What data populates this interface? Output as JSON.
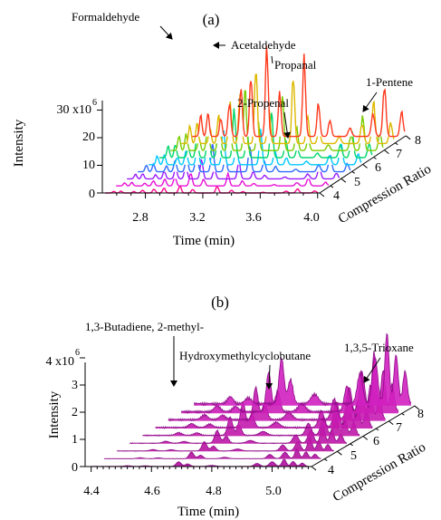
{
  "chart_data": [
    {
      "panel_label": "(a)",
      "type": "line",
      "style": "waterfall-3d",
      "color_scheme": "rainbow",
      "xlabel": "Time (min)",
      "ylabel": "Intensity",
      "zlabel": "Compression Ratio",
      "xlim": [
        2.5,
        4.0
      ],
      "ylim": [
        0,
        35000000
      ],
      "x_ticks": [
        "2.8",
        "3.2",
        "3.6",
        "4.0"
      ],
      "y_ticks": [
        "0",
        "10",
        "20",
        "30 x10"
      ],
      "y_exponent": "6",
      "z_ticks": [
        "4",
        "5",
        "6",
        "7",
        "8"
      ],
      "annotations": [
        "Formaldehyde",
        "Acetaldehyde",
        "Propanal",
        "1-Pentene",
        "2-Propenal"
      ],
      "peaks": [
        {
          "name": "Formaldehyde",
          "time": 3.04,
          "max_intensity": 31500000
        },
        {
          "name": "Acetaldehyde",
          "time": 3.3,
          "max_intensity": 29000000
        },
        {
          "name": "2-Propenal",
          "time": 3.78,
          "max_intensity": 8000000
        },
        {
          "name": "Propanal",
          "time": 3.86,
          "max_intensity": 18000000
        },
        {
          "name": "1-Pentene",
          "time": 3.98,
          "max_intensity": 9000000
        }
      ],
      "series": [
        {
          "name": "4",
          "scale": 0.08
        },
        {
          "name": "4.5",
          "scale": 0.15
        },
        {
          "name": "5",
          "scale": 0.22
        },
        {
          "name": "5.5",
          "scale": 0.32
        },
        {
          "name": "6",
          "scale": 0.42
        },
        {
          "name": "6.5",
          "scale": 0.55
        },
        {
          "name": "7",
          "scale": 0.7
        },
        {
          "name": "7.5",
          "scale": 0.85
        },
        {
          "name": "8",
          "scale": 1.0
        }
      ]
    },
    {
      "panel_label": "(b)",
      "type": "line",
      "style": "waterfall-3d",
      "color_scheme": "magenta",
      "xlabel": "Time (min)",
      "ylabel": "Intensity",
      "zlabel": "Compression Ratio",
      "xlim": [
        4.4,
        5.15
      ],
      "ylim": [
        0,
        4200000
      ],
      "x_ticks": [
        "4.4",
        "4.6",
        "4.8",
        "5.0"
      ],
      "y_ticks": [
        "0",
        "1",
        "2",
        "3",
        "4 x10"
      ],
      "y_exponent": "6",
      "z_ticks": [
        "4",
        "5",
        "6",
        "7",
        "8"
      ],
      "annotations": [
        "1,3-Butadiene, 2-methyl-",
        "Hydroxymethylcyclobutane",
        "1,3,5-Trioxane"
      ],
      "peaks": [
        {
          "name": "1,3-Butadiene, 2-methyl-",
          "time": 4.69,
          "max_intensity": 1700000
        },
        {
          "name": "Hydroxymethylcyclobutane",
          "time": 5.0,
          "max_intensity": 1700000
        },
        {
          "name": "1,3,5-Trioxane",
          "time": 4.95,
          "max_intensity": 2600000
        }
      ],
      "series": [
        {
          "name": "4",
          "scale": 0.1
        },
        {
          "name": "4.5",
          "scale": 0.14
        },
        {
          "name": "5",
          "scale": 0.2
        },
        {
          "name": "5.5",
          "scale": 0.28
        },
        {
          "name": "6",
          "scale": 0.4
        },
        {
          "name": "6.5",
          "scale": 0.55
        },
        {
          "name": "7",
          "scale": 0.7
        },
        {
          "name": "7.5",
          "scale": 0.85
        },
        {
          "name": "8",
          "scale": 1.0
        }
      ]
    }
  ]
}
